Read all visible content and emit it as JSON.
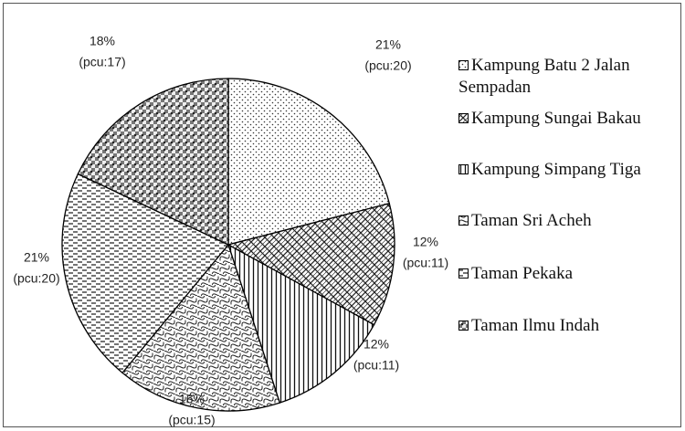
{
  "chart_data": {
    "type": "pie",
    "categories": [
      "Kampung Batu 2 Jalan Sempadan",
      "Kampung Sungai Bakau",
      "Kampung Simpang Tiga",
      "Taman Sri Acheh",
      "Taman Pekaka",
      "Taman Ilmu Indah"
    ],
    "values": [
      21,
      12,
      12,
      16,
      21,
      18
    ],
    "value_labels": [
      "21%",
      "12%",
      "12%",
      "16%",
      "21%",
      "18%"
    ],
    "pcu": [
      20,
      11,
      11,
      15,
      20,
      17
    ],
    "pcu_labels": [
      "(pcu:20)",
      "(pcu:11)",
      "(pcu:11)",
      "(pcu:15)",
      "(pcu:20)",
      "(pcu:17)"
    ],
    "legend": "right"
  }
}
